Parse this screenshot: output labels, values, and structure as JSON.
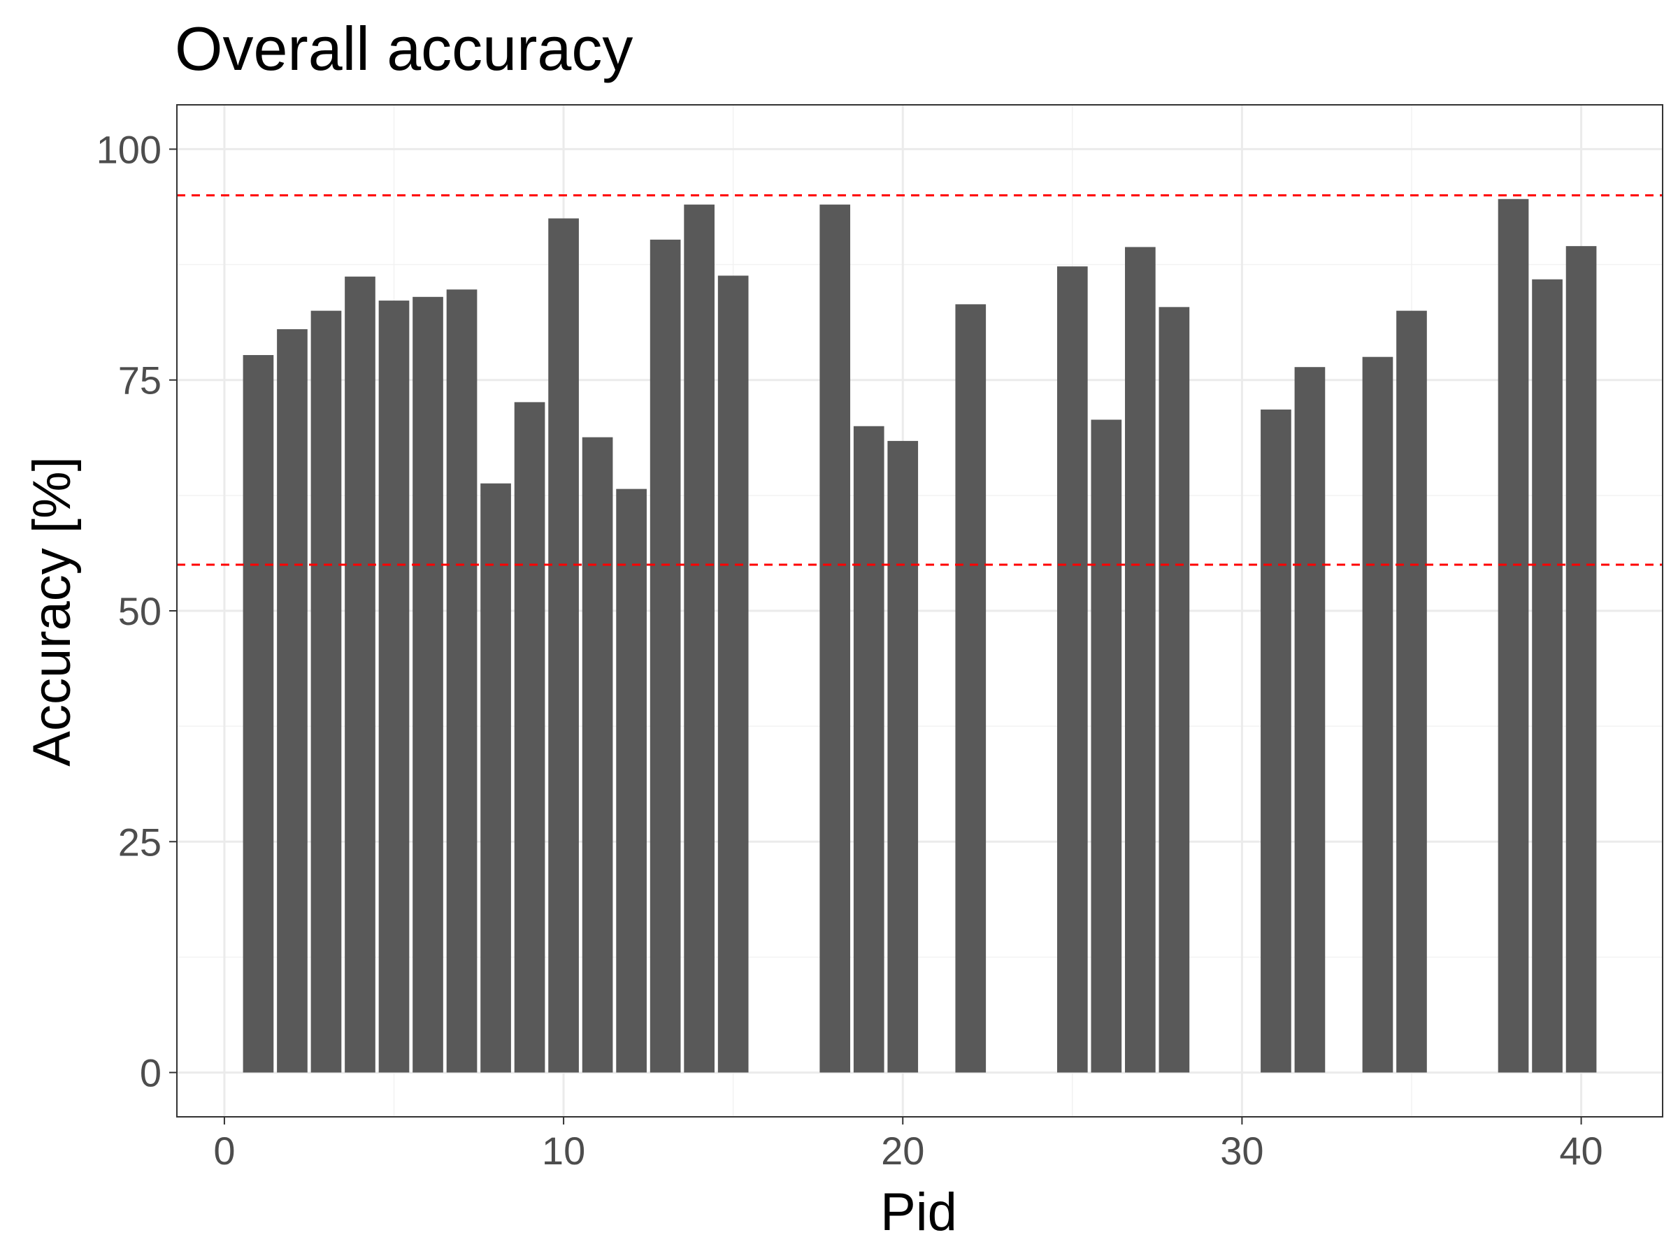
{
  "chart_data": {
    "type": "bar",
    "title": "Overall accuracy",
    "xlabel": "Pid",
    "ylabel": "Accuracy [%]",
    "xlim": [
      -1.4,
      42.4
    ],
    "ylim": [
      -4.8,
      104.8
    ],
    "x_ticks": [
      0,
      10,
      20,
      30,
      40
    ],
    "y_ticks": [
      0,
      25,
      50,
      75,
      100
    ],
    "grid": true,
    "bar_color": "#595959",
    "reference_lines": [
      {
        "y": 95,
        "color": "#ff0000",
        "style": "dashed"
      },
      {
        "y": 55,
        "color": "#ff0000",
        "style": "dashed"
      }
    ],
    "x": [
      1,
      2,
      3,
      4,
      5,
      6,
      7,
      8,
      9,
      10,
      11,
      12,
      13,
      14,
      15,
      18,
      19,
      20,
      22,
      25,
      26,
      27,
      28,
      31,
      32,
      34,
      35,
      38,
      39,
      40
    ],
    "values": [
      77.7,
      80.5,
      82.5,
      86.2,
      83.6,
      84.0,
      84.8,
      63.8,
      72.6,
      92.5,
      68.8,
      63.2,
      90.2,
      94.0,
      86.3,
      94.0,
      70.0,
      68.4,
      83.2,
      87.3,
      70.7,
      89.4,
      82.9,
      71.8,
      76.4,
      77.5,
      82.5,
      94.6,
      85.9,
      89.5
    ]
  }
}
